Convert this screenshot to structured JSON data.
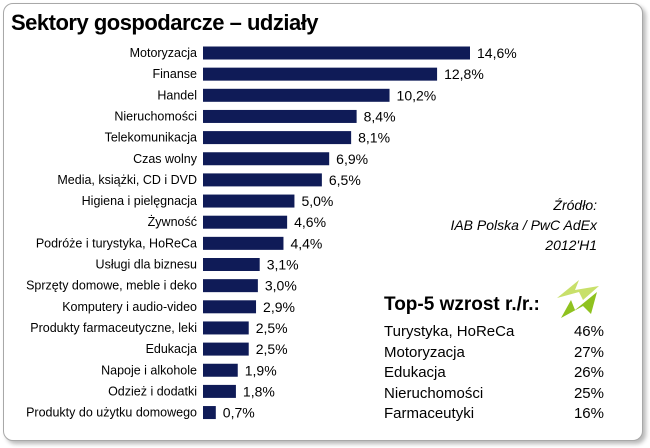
{
  "title": "Sektory gospodarcze – udziały",
  "source": {
    "line1": "Źródło:",
    "line2": "IAB Polska / PwC AdEx",
    "line3": "2012'H1"
  },
  "top5": {
    "title": "Top-5 wzrost r./r.:",
    "rows": [
      {
        "name": "Turystyka, HoReCa",
        "value": "46%"
      },
      {
        "name": "Motoryzacja",
        "value": "27%"
      },
      {
        "name": "Edukacja",
        "value": "26%"
      },
      {
        "name": "Nieruchomości",
        "value": "25%"
      },
      {
        "name": "Farmaceutyki",
        "value": "16%"
      }
    ]
  },
  "colors": {
    "bar": "#0f1b57",
    "logo_light": "#c8e06a",
    "logo_dark": "#8fc21f"
  },
  "chart_data": {
    "type": "bar",
    "orientation": "horizontal",
    "categories": [
      "Motoryzacja",
      "Finanse",
      "Handel",
      "Nieruchomości",
      "Telekomunikacja",
      "Czas wolny",
      "Media, książki, CD i DVD",
      "Higiena i pielęgnacja",
      "Żywność",
      "Podróże i turystyka, HoReCa",
      "Usługi dla biznesu",
      "Sprzęty domowe, meble i deko",
      "Komputery i audio-video",
      "Produkty farmaceutyczne, leki",
      "Edukacja",
      "Napoje i alkohole",
      "Odzież i dodatki",
      "Produkty do użytku domowego"
    ],
    "values": [
      14.6,
      12.8,
      10.2,
      8.4,
      8.1,
      6.9,
      6.5,
      5.0,
      4.6,
      4.4,
      3.1,
      3.0,
      2.9,
      2.5,
      2.5,
      1.9,
      1.8,
      0.7
    ],
    "value_labels": [
      "14,6%",
      "12,8%",
      "10,2%",
      "8,4%",
      "8,1%",
      "6,9%",
      "6,5%",
      "5,0%",
      "4,6%",
      "4,4%",
      "3,1%",
      "3,0%",
      "2,9%",
      "2,5%",
      "2,5%",
      "1,9%",
      "1,8%",
      "0,7%"
    ],
    "xlim": [
      0,
      14.6
    ],
    "grid": false,
    "legend": "none"
  }
}
